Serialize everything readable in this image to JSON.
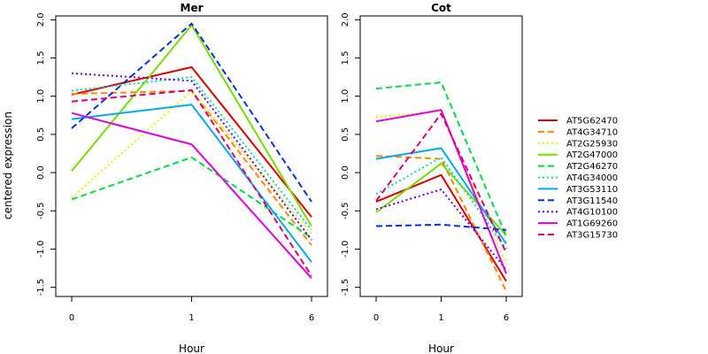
{
  "chart_data": {
    "type": "line",
    "ylabel": "centered expression",
    "x_categories": [
      "0",
      "1",
      "6"
    ],
    "y_ticks": [
      -1.5,
      -1.0,
      -0.5,
      0.0,
      0.5,
      1.0,
      1.5,
      2.0
    ],
    "y_tick_labels": [
      "-1.5",
      "-1.0",
      "-0.5",
      "0.0",
      "0.5",
      "1.0",
      "1.5",
      "2.0"
    ],
    "ylim": [
      -1.62,
      2.05
    ],
    "legend": {
      "position": "right",
      "entries": [
        {
          "name": "AT5G62470",
          "color": "#dd0000",
          "dash": "solid"
        },
        {
          "name": "AT4G34710",
          "color": "#ff8800",
          "dash": "dashed"
        },
        {
          "name": "AT2G25930",
          "color": "#eeee00",
          "dash": "dotted"
        },
        {
          "name": "AT2G47000",
          "color": "#77dd00",
          "dash": "solid"
        },
        {
          "name": "AT2G46270",
          "color": "#00dd44",
          "dash": "dashed"
        },
        {
          "name": "AT4G34000",
          "color": "#00ddaa",
          "dash": "dotted"
        },
        {
          "name": "AT3G53110",
          "color": "#00aaee",
          "dash": "solid"
        },
        {
          "name": "AT3G11540",
          "color": "#0033dd",
          "dash": "dashed"
        },
        {
          "name": "AT4G10100",
          "color": "#6600ee",
          "dash": "dotted"
        },
        {
          "name": "AT1G69260",
          "color": "#dd00dd",
          "dash": "solid"
        },
        {
          "name": "AT3G15730",
          "color": "#dd0077",
          "dash": "dashed"
        }
      ]
    },
    "panels": [
      {
        "title": "Mer",
        "xlabel": "Hour",
        "series": [
          {
            "name": "AT5G62470",
            "values": [
              1.02,
              1.38,
              -0.58
            ]
          },
          {
            "name": "AT4G34710",
            "values": [
              1.03,
              1.07,
              -0.95
            ]
          },
          {
            "name": "AT2G25930",
            "values": [
              -0.33,
              1.07,
              -0.8
            ]
          },
          {
            "name": "AT2G47000",
            "values": [
              0.02,
              1.93,
              -0.7
            ]
          },
          {
            "name": "AT2G46270",
            "values": [
              -0.35,
              0.2,
              -0.85
            ]
          },
          {
            "name": "AT4G34000",
            "values": [
              1.07,
              1.25,
              -0.75
            ]
          },
          {
            "name": "AT3G53110",
            "values": [
              0.7,
              0.89,
              -1.17
            ]
          },
          {
            "name": "AT3G11540",
            "values": [
              0.58,
              1.95,
              -0.38
            ]
          },
          {
            "name": "AT4G10100",
            "values": [
              1.3,
              1.2,
              -0.88
            ]
          },
          {
            "name": "AT1G69260",
            "values": [
              0.78,
              0.37,
              -1.38
            ]
          },
          {
            "name": "AT3G15730",
            "values": [
              0.93,
              1.08,
              -1.35
            ]
          }
        ]
      },
      {
        "title": "Cot",
        "xlabel": "Hour",
        "series": [
          {
            "name": "AT5G62470",
            "values": [
              -0.38,
              -0.03,
              -1.42
            ]
          },
          {
            "name": "AT4G34710",
            "values": [
              0.22,
              0.18,
              -1.55
            ]
          },
          {
            "name": "AT2G25930",
            "values": [
              0.73,
              0.8,
              -1.2
            ]
          },
          {
            "name": "AT2G47000",
            "values": [
              -0.52,
              0.12,
              -0.82
            ]
          },
          {
            "name": "AT2G46270",
            "values": [
              1.1,
              1.18,
              -0.83
            ]
          },
          {
            "name": "AT4G34000",
            "values": [
              -0.28,
              0.2,
              -1.0
            ]
          },
          {
            "name": "AT3G53110",
            "values": [
              0.18,
              0.32,
              -0.93
            ]
          },
          {
            "name": "AT3G11540",
            "values": [
              -0.7,
              -0.68,
              -0.75
            ]
          },
          {
            "name": "AT4G10100",
            "values": [
              -0.48,
              -0.22,
              -1.27
            ]
          },
          {
            "name": "AT1G69260",
            "values": [
              0.67,
              0.82,
              -1.32
            ]
          },
          {
            "name": "AT3G15730",
            "values": [
              -0.37,
              0.77,
              -1.05
            ]
          }
        ]
      }
    ]
  }
}
